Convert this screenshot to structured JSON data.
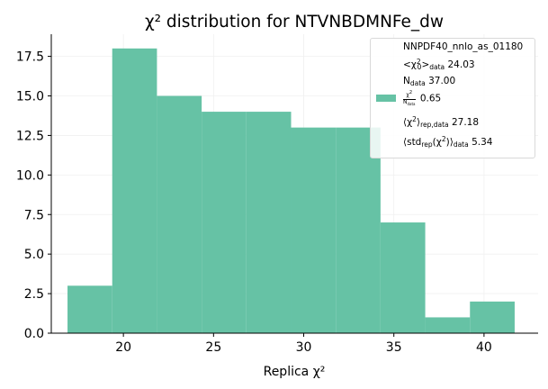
{
  "chart_data": {
    "type": "bar",
    "title": "χ² distribution for NTVNBDMNFe_dw",
    "xlabel": "Replica χ²",
    "ylabel": "",
    "xlim": [
      16,
      43
    ],
    "ylim": [
      0,
      18.9
    ],
    "x_ticks": [
      20,
      25,
      30,
      35,
      40
    ],
    "y_ticks": [
      0.0,
      2.5,
      5.0,
      7.5,
      10.0,
      12.5,
      15.0,
      17.5
    ],
    "bin_edges": [
      16.9,
      19.38,
      21.86,
      24.34,
      26.82,
      29.3,
      31.78,
      34.26,
      36.74,
      39.22,
      41.7
    ],
    "counts": [
      3,
      18,
      15,
      14,
      14,
      13,
      13,
      7,
      1,
      2
    ],
    "bar_color": "#66c2a5",
    "grid": true,
    "legend_position": "top-right",
    "legend": {
      "title": "NNPDF40_nnlo_as_01180",
      "chi2_exp_value": "24.03",
      "ndata_value": "37.00",
      "chi2_over_ndata_value": "0.65",
      "chi2_rep_value": "27.18",
      "std_rep_value": "5.34"
    }
  }
}
